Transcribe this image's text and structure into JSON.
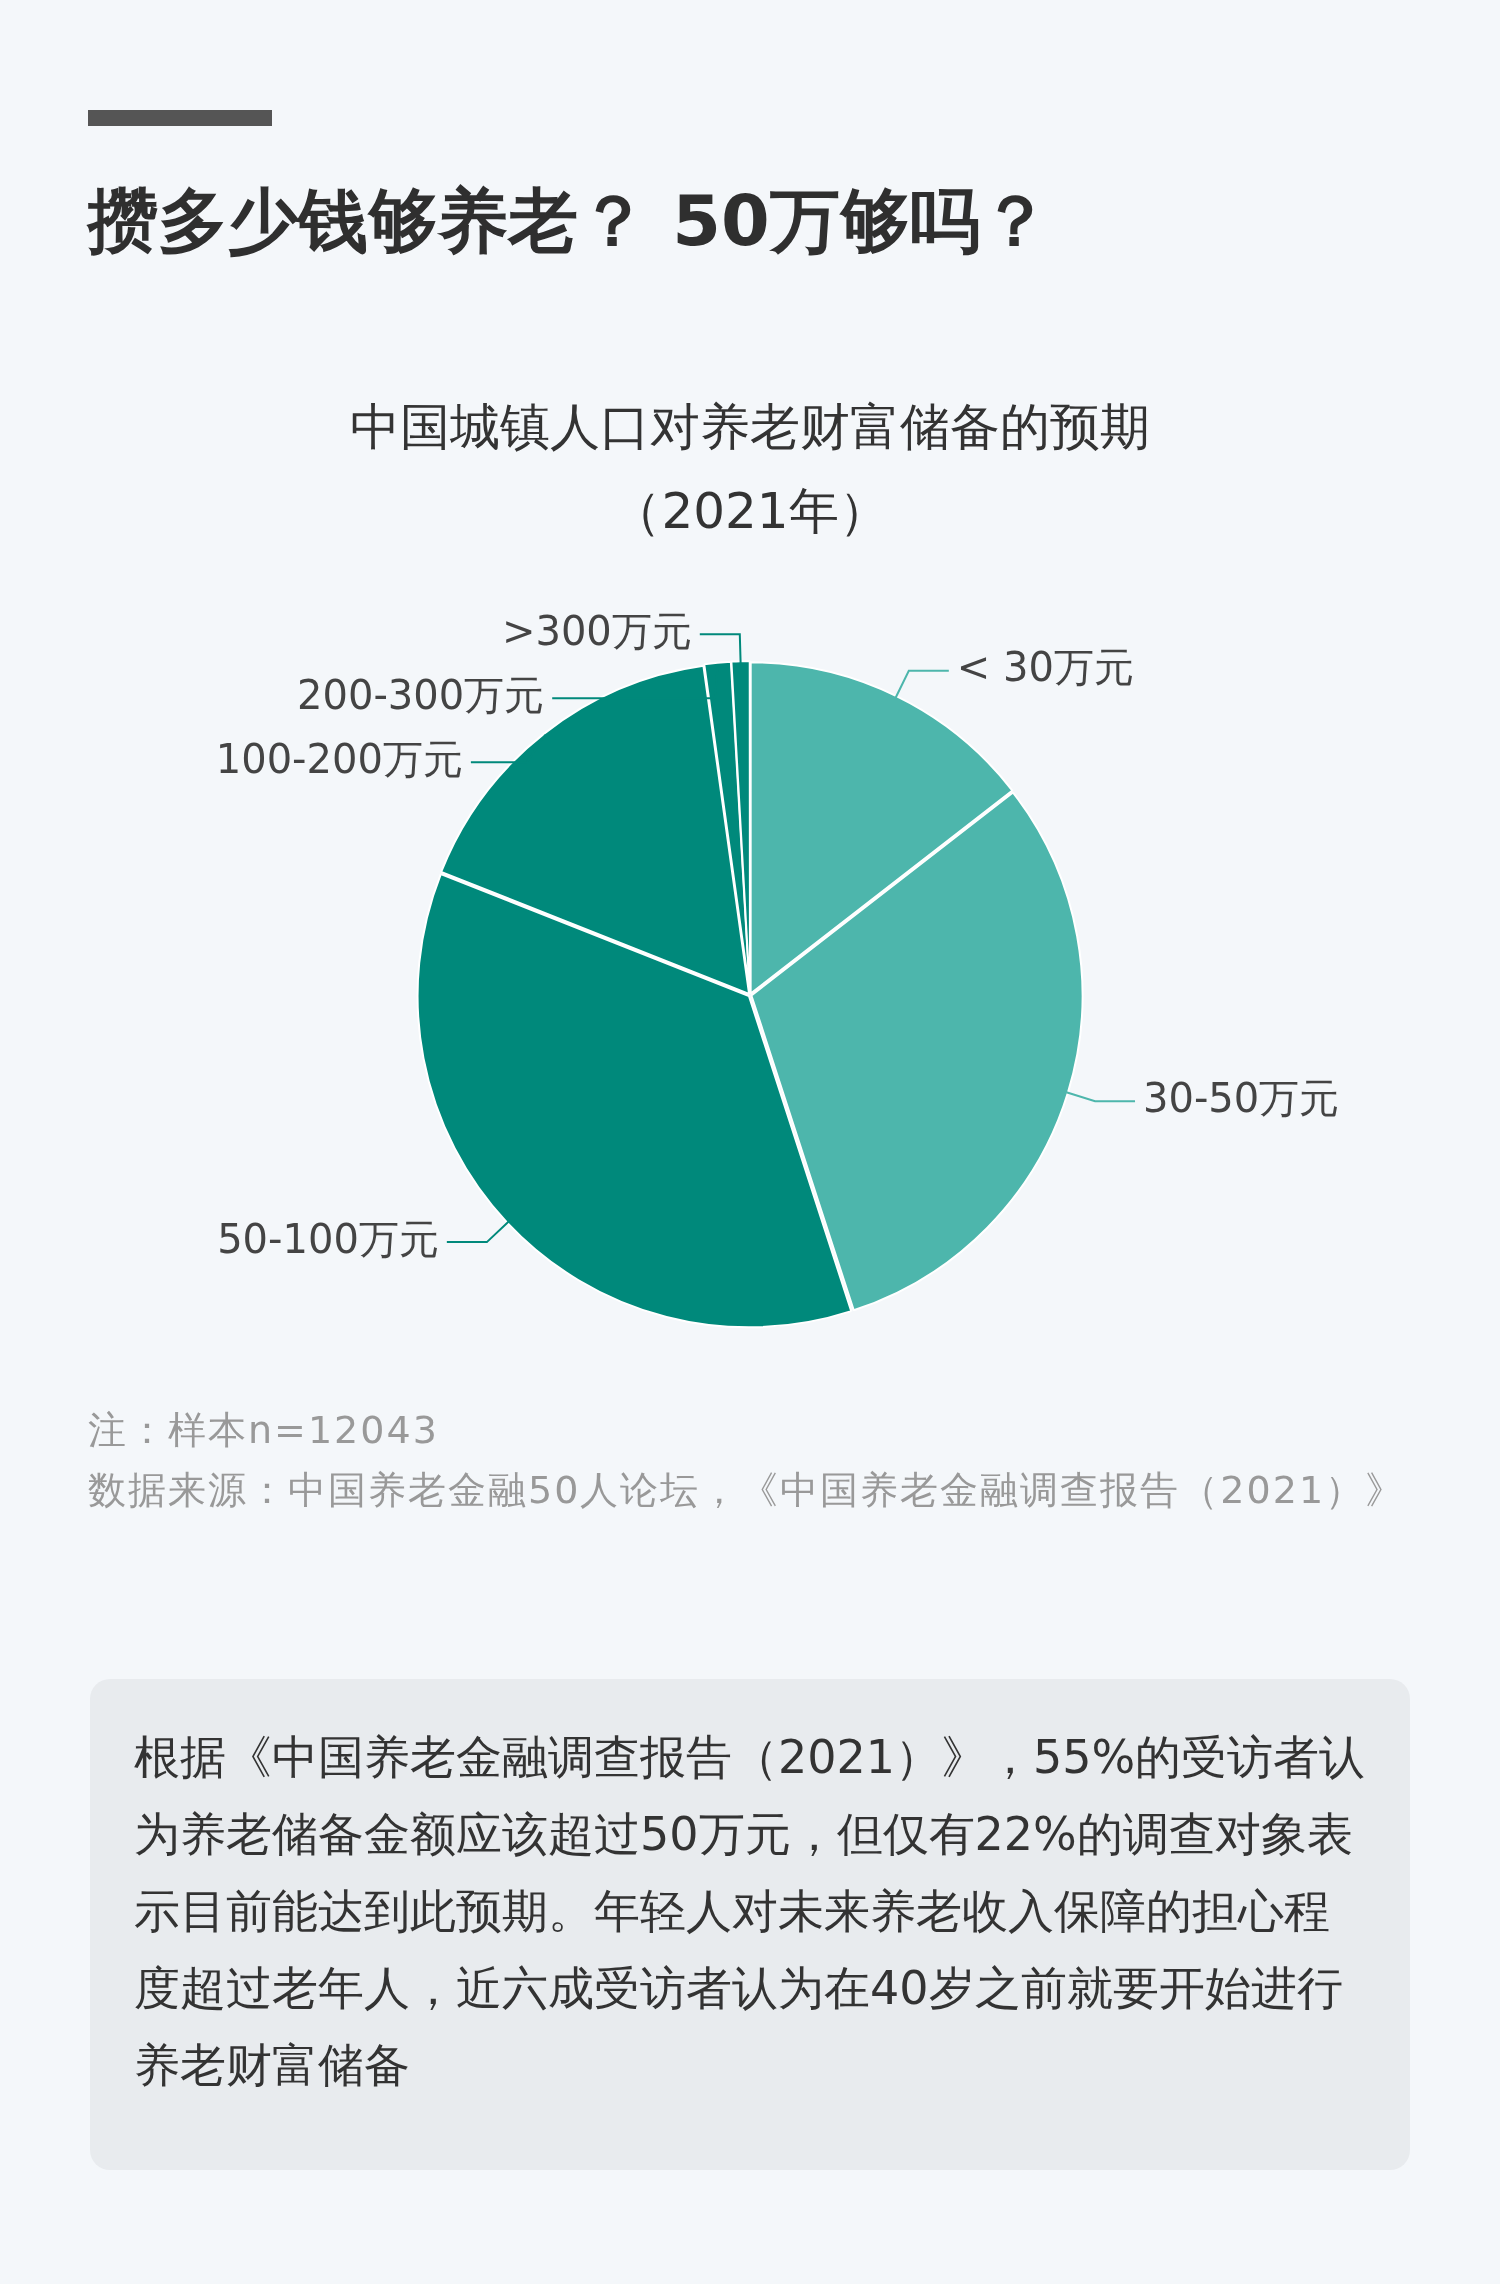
{
  "chart_data": {
    "type": "pie",
    "title": "攒多少钱够养老？ 50万够吗？",
    "subtitle": "中国城镇人口对养老财富储备的预期（2021年）",
    "categories": [
      "< 30万元",
      "30-50万元",
      "50-100万元",
      "100-200万元",
      "200-300万元",
      ">300万元"
    ],
    "values": [
      14.5,
      30.5,
      36,
      16.8,
      1.3,
      0.9
    ],
    "colors": [
      "#4db6ac",
      "#4db6ac",
      "#00897b",
      "#00897b",
      "#00897b",
      "#00897b"
    ],
    "legend": false,
    "annotations": [
      "注：样本n=12043",
      "数据来源：中国养老金融50人论坛，《中国养老金融调查报告（2021）》",
      "根据《中国养老金融调查报告（2021）》，55%的受访者认为养老储备金额应该超过50万元，但仅有22%的调查对象表示目前能达到此预期。年轻人对未来养老收入保障的担心程度超过老年人，近六成受访者认为在40岁之前就要开始进行养老财富储备"
    ]
  }
}
